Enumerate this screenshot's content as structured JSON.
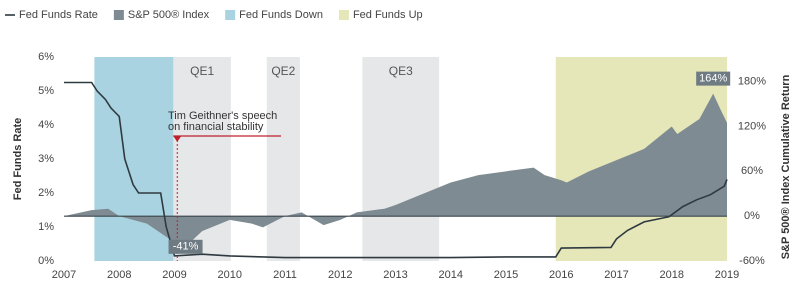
{
  "chart_data": {
    "type": "line",
    "x_label": null,
    "y_label": "Fed Funds Rate",
    "y2_label": "S&P 500® Index Cumulative Return",
    "xlim": [
      2007,
      2019
    ],
    "xticks": [
      2007,
      2008,
      2009,
      2010,
      2011,
      2012,
      2013,
      2014,
      2015,
      2016,
      2017,
      2018,
      2019
    ],
    "ylim": [
      0,
      6
    ],
    "yticks": [
      {
        "value": 0,
        "label": "0%"
      },
      {
        "value": 1,
        "label": "1%"
      },
      {
        "value": 2,
        "label": "2%"
      },
      {
        "value": 3,
        "label": "3%"
      },
      {
        "value": 4,
        "label": "4%"
      },
      {
        "value": 5,
        "label": "5%"
      },
      {
        "value": 6,
        "label": "6%"
      }
    ],
    "y2lim": [
      -60,
      213
    ],
    "y2ticks": [
      {
        "value": -60,
        "label": "-60%"
      },
      {
        "value": 0,
        "label": "0%"
      },
      {
        "value": 60,
        "label": "60%"
      },
      {
        "value": 120,
        "label": "120%"
      },
      {
        "value": 180,
        "label": "180%"
      }
    ],
    "series": [
      {
        "name": "Fed Funds Rate",
        "color": "#2f3a40",
        "kind": "line",
        "x": [
          2007.0,
          2007.5,
          2007.6,
          2007.75,
          2007.85,
          2008.0,
          2008.1,
          2008.25,
          2008.35,
          2008.75,
          2008.85,
          2009.0,
          2009.5,
          2010.0,
          2011.0,
          2012.0,
          2013.0,
          2014.0,
          2015.0,
          2015.9,
          2016.0,
          2016.9,
          2017.0,
          2017.2,
          2017.5,
          2017.95,
          2018.2,
          2018.45,
          2018.7,
          2018.95,
          2019.0
        ],
        "values": [
          5.25,
          5.25,
          5.0,
          4.75,
          4.5,
          4.25,
          3.0,
          2.25,
          2.0,
          2.0,
          1.0,
          0.15,
          0.2,
          0.15,
          0.1,
          0.1,
          0.1,
          0.1,
          0.12,
          0.12,
          0.38,
          0.4,
          0.65,
          0.9,
          1.15,
          1.3,
          1.6,
          1.8,
          1.95,
          2.2,
          2.4
        ]
      },
      {
        "name": "S&P 500® Index",
        "color": "#7f8b92",
        "kind": "area",
        "axis": "y2",
        "x": [
          2007.0,
          2007.5,
          2007.8,
          2008.0,
          2008.5,
          2008.8,
          2009.0,
          2009.2,
          2009.5,
          2010.0,
          2010.4,
          2010.6,
          2011.0,
          2011.3,
          2011.7,
          2012.0,
          2012.3,
          2012.8,
          2013.0,
          2013.5,
          2014.0,
          2014.5,
          2015.0,
          2015.5,
          2015.7,
          2016.0,
          2016.1,
          2016.5,
          2017.0,
          2017.5,
          2018.0,
          2018.1,
          2018.5,
          2018.75,
          2018.9,
          2019.0
        ],
        "values": [
          0,
          8,
          10,
          0,
          -10,
          -25,
          -35,
          -41,
          -20,
          -5,
          -10,
          -15,
          0,
          5,
          -12,
          -5,
          5,
          10,
          15,
          30,
          45,
          55,
          60,
          65,
          55,
          48,
          45,
          60,
          75,
          90,
          120,
          110,
          130,
          164,
          140,
          125
        ]
      }
    ],
    "periods": [
      {
        "name": "Fed Funds Down",
        "start": 2007.55,
        "end": 2008.98,
        "color": "#a9d3e0"
      },
      {
        "name": "Fed Funds Up",
        "start": 2015.9,
        "end": 2019.0,
        "color": "#e5e7b9"
      }
    ],
    "qe_periods": [
      {
        "name": "QE1",
        "start": 2008.98,
        "end": 2010.02,
        "color": "#e6e7e9"
      },
      {
        "name": "QE2",
        "start": 2010.67,
        "end": 2011.27,
        "color": "#e6e7e9"
      },
      {
        "name": "QE3",
        "start": 2012.4,
        "end": 2013.79,
        "color": "#e6e7e9"
      }
    ],
    "point_labels": [
      {
        "label": "164%",
        "x": 2018.75,
        "value": 164
      },
      {
        "label": "-41%",
        "x": 2009.2,
        "value": -41
      }
    ],
    "annotation": {
      "lines": [
        "Tim Geithner's speech",
        "on financial stability"
      ],
      "x": 2009.05,
      "color": "#c0202e"
    }
  }
}
